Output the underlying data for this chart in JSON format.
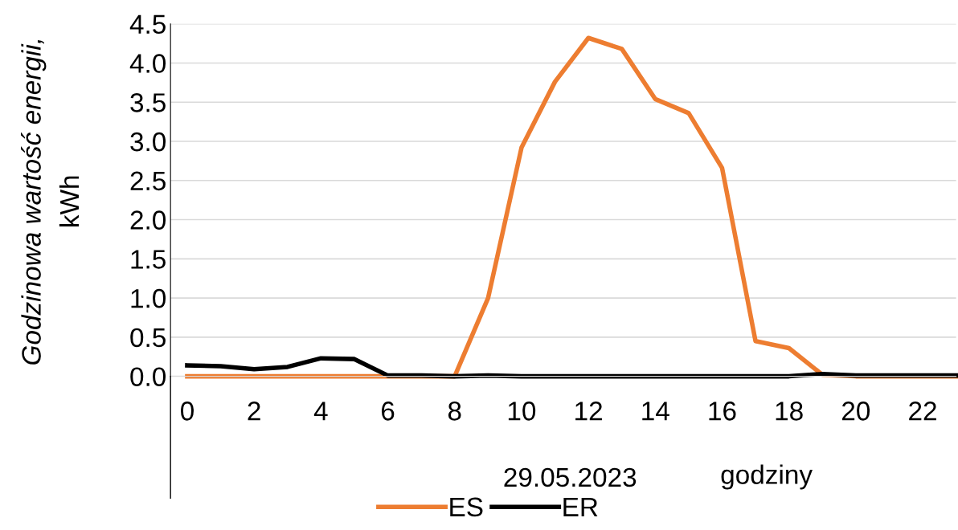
{
  "chart_data": {
    "type": "line",
    "xlabel": "godziny",
    "ylabel": "Godzinowa wartość energii,\nkWh",
    "x": [
      0,
      1,
      2,
      3,
      4,
      5,
      6,
      7,
      8,
      9,
      10,
      11,
      12,
      13,
      14,
      15,
      16,
      17,
      18,
      19,
      20,
      21,
      22,
      23
    ],
    "series": [
      {
        "name": "ES",
        "color": "#ed7d31",
        "values": [
          0,
          0,
          0,
          0,
          0,
          0,
          0,
          0,
          0,
          1.0,
          2.92,
          3.76,
          4.32,
          4.18,
          3.54,
          3.36,
          2.66,
          0.45,
          0.36,
          0.02,
          0,
          0,
          0,
          0
        ]
      },
      {
        "name": "ER",
        "color": "#000000",
        "values": [
          0.14,
          0.13,
          0.09,
          0.12,
          0.23,
          0.22,
          0.01,
          0.01,
          0.0,
          0.01,
          0,
          0,
          0,
          0,
          0,
          0,
          0,
          0,
          0,
          0.03,
          0.01,
          0.01,
          0.01,
          0.01
        ]
      }
    ],
    "xlim": [
      -0.5,
      23
    ],
    "xticks": [
      0,
      2,
      4,
      6,
      8,
      10,
      12,
      14,
      16,
      18,
      20,
      22
    ],
    "ylim": [
      0,
      4.5
    ],
    "yticks": [
      {
        "value": 0,
        "label": "0.0"
      },
      {
        "value": 0.5,
        "label": "0.5"
      },
      {
        "value": 1,
        "label": "1.0"
      },
      {
        "value": 1.5,
        "label": "1.5"
      },
      {
        "value": 2,
        "label": "2.0"
      },
      {
        "value": 2.5,
        "label": "2.5"
      },
      {
        "value": 3,
        "label": "3.0"
      },
      {
        "value": 3.5,
        "label": "3.5"
      },
      {
        "value": 4,
        "label": "4.0"
      },
      {
        "value": 4.5,
        "label": "4.5"
      }
    ],
    "grid": "y",
    "legend": "bottom",
    "marker": "none",
    "line_style": "solid",
    "annotations": [
      "29.05.2023"
    ]
  }
}
